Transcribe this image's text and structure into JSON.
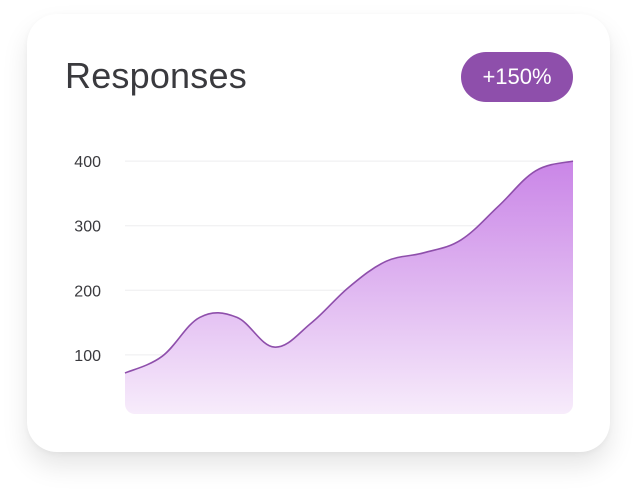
{
  "card": {
    "title": "Responses",
    "badge": "+150%"
  },
  "colors": {
    "badge": "#8e4fab",
    "line": "#8e4fab",
    "fill_top": "#c77fe6",
    "fill_bottom": "#f7ecfb"
  },
  "chart_data": {
    "type": "area",
    "title": "Responses",
    "xlabel": "",
    "ylabel": "",
    "y_ticks": [
      400,
      300,
      200,
      100
    ],
    "ylim": [
      0,
      400
    ],
    "grid": true,
    "x": [
      0,
      1,
      2,
      3,
      4,
      5,
      6,
      7,
      8,
      9,
      10,
      11,
      12
    ],
    "values": [
      72,
      98,
      158,
      158,
      112,
      150,
      205,
      245,
      258,
      278,
      330,
      385,
      400
    ]
  }
}
